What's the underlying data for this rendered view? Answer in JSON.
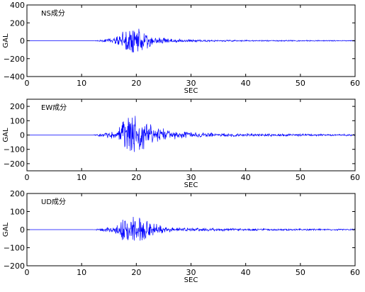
{
  "chart_data": [
    {
      "type": "line",
      "title": "NS成分",
      "xlabel": "SEC",
      "ylabel": "GAL",
      "xlim": [
        0,
        60
      ],
      "ylim": [
        -400,
        400
      ],
      "xticks": [
        0,
        10,
        20,
        30,
        40,
        50,
        60
      ],
      "yticks": [
        -400,
        -200,
        0,
        200,
        400
      ],
      "grid": false,
      "line_color": "#0000ff",
      "envelope": [
        {
          "t": 0,
          "amp": 0
        },
        {
          "t": 12,
          "amp": 0
        },
        {
          "t": 14,
          "amp": 12
        },
        {
          "t": 16,
          "amp": 25
        },
        {
          "t": 18,
          "amp": 100
        },
        {
          "t": 19.5,
          "amp": 130
        },
        {
          "t": 21,
          "amp": 110
        },
        {
          "t": 23,
          "amp": 45
        },
        {
          "t": 26,
          "amp": 18
        },
        {
          "t": 30,
          "amp": 10
        },
        {
          "t": 40,
          "amp": 6
        },
        {
          "t": 60,
          "amp": 4
        }
      ]
    },
    {
      "type": "line",
      "title": "EW成分",
      "xlabel": "SEC",
      "ylabel": "GAL",
      "xlim": [
        0,
        60
      ],
      "ylim": [
        -250,
        250
      ],
      "xticks": [
        0,
        10,
        20,
        30,
        40,
        50,
        60
      ],
      "yticks": [
        -200,
        -100,
        0,
        100,
        200
      ],
      "grid": false,
      "line_color": "#0000ff",
      "envelope": [
        {
          "t": 0,
          "amp": 0
        },
        {
          "t": 12,
          "amp": 0
        },
        {
          "t": 13,
          "amp": 8
        },
        {
          "t": 16,
          "amp": 22
        },
        {
          "t": 18,
          "amp": 90
        },
        {
          "t": 19,
          "amp": 125
        },
        {
          "t": 20.5,
          "amp": 120
        },
        {
          "t": 22,
          "amp": 70
        },
        {
          "t": 25,
          "amp": 35
        },
        {
          "t": 28,
          "amp": 22
        },
        {
          "t": 32,
          "amp": 12
        },
        {
          "t": 40,
          "amp": 8
        },
        {
          "t": 60,
          "amp": 5
        }
      ]
    },
    {
      "type": "line",
      "title": "UD成分",
      "xlabel": "SEC",
      "ylabel": "GAL",
      "xlim": [
        0,
        60
      ],
      "ylim": [
        -200,
        200
      ],
      "xticks": [
        0,
        10,
        20,
        30,
        40,
        50,
        60
      ],
      "yticks": [
        -200,
        -100,
        0,
        100,
        200
      ],
      "grid": false,
      "line_color": "#0000ff",
      "envelope": [
        {
          "t": 0,
          "amp": 0
        },
        {
          "t": 12,
          "amp": 0
        },
        {
          "t": 14,
          "amp": 8
        },
        {
          "t": 16,
          "amp": 20
        },
        {
          "t": 18,
          "amp": 55
        },
        {
          "t": 19.5,
          "amp": 65
        },
        {
          "t": 21,
          "amp": 50
        },
        {
          "t": 23,
          "amp": 30
        },
        {
          "t": 26,
          "amp": 12
        },
        {
          "t": 30,
          "amp": 7
        },
        {
          "t": 40,
          "amp": 5
        },
        {
          "t": 60,
          "amp": 3
        }
      ]
    }
  ]
}
